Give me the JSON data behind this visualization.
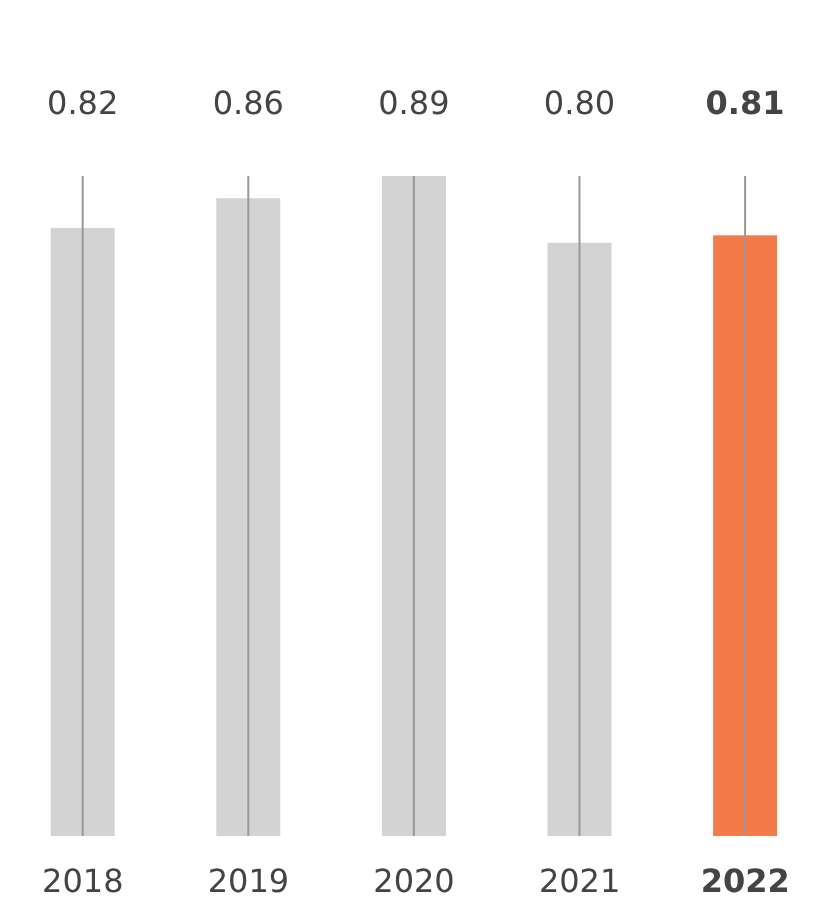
{
  "chart_data": {
    "type": "bar",
    "categories": [
      "2018",
      "2019",
      "2020",
      "2021",
      "2022"
    ],
    "values": [
      0.82,
      0.86,
      0.89,
      0.8,
      0.81
    ],
    "value_labels": [
      "0.82",
      "0.86",
      "0.89",
      "0.80",
      "0.81"
    ],
    "colors": [
      "#d3d3d3",
      "#d3d3d3",
      "#d3d3d3",
      "#d3d3d3",
      "#f47a4a"
    ],
    "grid": "x"
  }
}
